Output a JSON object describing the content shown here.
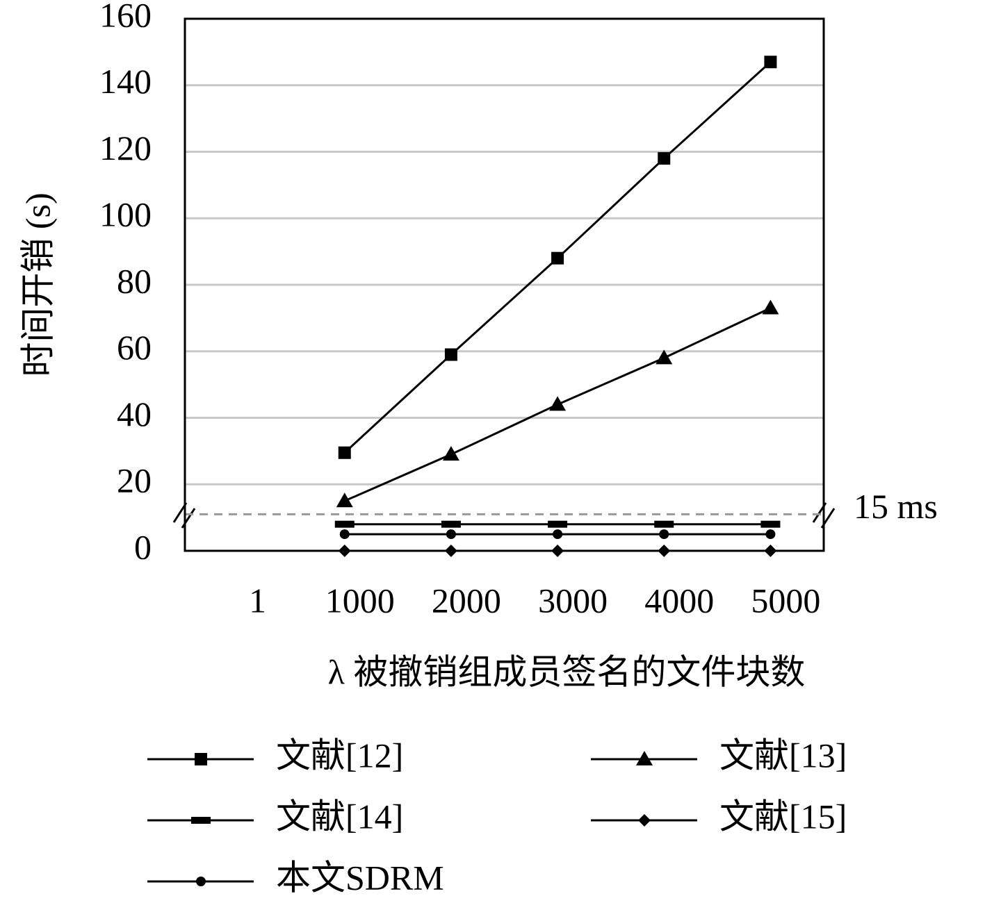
{
  "chart_data": {
    "type": "line",
    "y_label": "时间开销 (s)",
    "x_label": "λ 被撤销组成员签名的文件块数",
    "categories": [
      "1",
      "1000",
      "2000",
      "3000",
      "4000",
      "5000"
    ],
    "series": [
      {
        "name": "文献[12]",
        "color": "#000000",
        "marker": "square",
        "values": [
          null,
          29.5,
          59,
          88,
          118,
          147
        ]
      },
      {
        "name": "文献[13]",
        "color": "#000000",
        "marker": "triangle",
        "values": [
          null,
          15,
          29,
          44,
          58,
          73
        ]
      },
      {
        "name": "文献[14]",
        "color": "#000000",
        "marker": "dash",
        "values": [
          null,
          8,
          8,
          8,
          8,
          8
        ]
      },
      {
        "name": "文献[15]",
        "color": "#000000",
        "marker": "diamond",
        "values": [
          null,
          0,
          0,
          0,
          0,
          0
        ]
      },
      {
        "name": "本文SDRM",
        "color": "#000000",
        "marker": "circle",
        "values": [
          null,
          5,
          5,
          5,
          5,
          5
        ]
      }
    ],
    "break": {
      "value": 11,
      "label": "15 ms"
    },
    "ylim": [
      0,
      160
    ],
    "yticks": [
      0,
      20,
      40,
      60,
      80,
      100,
      120,
      140,
      160
    ],
    "grid": true
  }
}
